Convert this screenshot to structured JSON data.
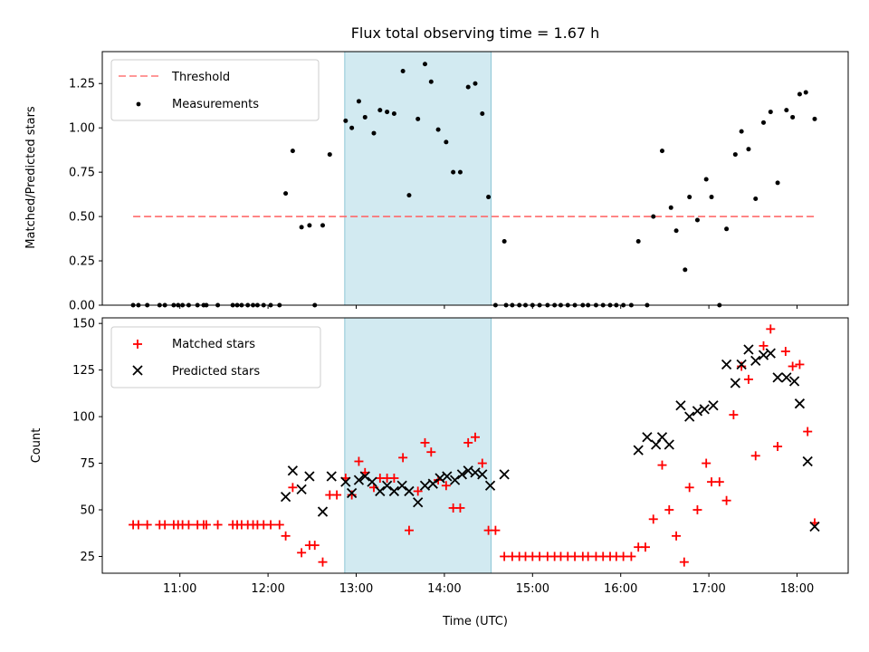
{
  "title": "Flux total observing time = 1.67 h",
  "colors": {
    "threshold": "#ff6666",
    "measurement": "#000000",
    "matched": "#ff0000",
    "predicted": "#000000",
    "observing_span": "#add8e6"
  },
  "chart_data": [
    {
      "type": "scatter",
      "ylabel": "Matched/Predicted stars",
      "ylim": [
        0,
        1.43
      ],
      "xlim": [
        10.12,
        18.58
      ],
      "x_unit": "hours UTC",
      "yticks": [
        0,
        0.25,
        0.5,
        0.75,
        1.0,
        1.25
      ],
      "ytick_labels": [
        "0.00",
        "0.25",
        "0.50",
        "0.75",
        "1.00",
        "1.25"
      ],
      "legend": {
        "position": "top-left",
        "entries": [
          "Threshold",
          "Measurements"
        ]
      },
      "observing_span": [
        12.87,
        14.53
      ],
      "threshold": {
        "name": "Threshold",
        "y": 0.5,
        "x_start": 10.47,
        "x_end": 18.2
      },
      "series": [
        {
          "name": "Measurements",
          "points": [
            [
              10.47,
              0
            ],
            [
              10.53,
              0
            ],
            [
              10.63,
              0
            ],
            [
              10.77,
              0
            ],
            [
              10.83,
              0
            ],
            [
              10.93,
              0
            ],
            [
              10.98,
              0
            ],
            [
              11.03,
              0
            ],
            [
              11.1,
              0
            ],
            [
              11.2,
              0
            ],
            [
              11.27,
              0
            ],
            [
              11.3,
              0
            ],
            [
              11.43,
              0
            ],
            [
              11.6,
              0
            ],
            [
              11.65,
              0
            ],
            [
              11.7,
              0
            ],
            [
              11.77,
              0
            ],
            [
              11.83,
              0
            ],
            [
              11.88,
              0
            ],
            [
              11.95,
              0
            ],
            [
              12.03,
              0
            ],
            [
              12.13,
              0
            ],
            [
              12.2,
              0.63
            ],
            [
              12.28,
              0.87
            ],
            [
              12.38,
              0.44
            ],
            [
              12.47,
              0.45
            ],
            [
              12.53,
              0
            ],
            [
              12.62,
              0.45
            ],
            [
              12.7,
              0.85
            ],
            [
              12.88,
              1.04
            ],
            [
              12.95,
              1.0
            ],
            [
              13.03,
              1.15
            ],
            [
              13.1,
              1.06
            ],
            [
              13.2,
              0.97
            ],
            [
              13.27,
              1.1
            ],
            [
              13.35,
              1.09
            ],
            [
              13.43,
              1.08
            ],
            [
              13.53,
              1.32
            ],
            [
              13.6,
              0.62
            ],
            [
              13.7,
              1.05
            ],
            [
              13.78,
              1.36
            ],
            [
              13.85,
              1.26
            ],
            [
              13.93,
              0.99
            ],
            [
              14.02,
              0.92
            ],
            [
              14.1,
              0.75
            ],
            [
              14.18,
              0.75
            ],
            [
              14.27,
              1.23
            ],
            [
              14.35,
              1.25
            ],
            [
              14.43,
              1.08
            ],
            [
              14.5,
              0.61
            ],
            [
              14.68,
              0.36
            ],
            [
              14.58,
              0
            ],
            [
              14.7,
              0
            ],
            [
              14.77,
              0
            ],
            [
              14.85,
              0
            ],
            [
              14.92,
              0
            ],
            [
              15.0,
              0
            ],
            [
              15.08,
              0
            ],
            [
              15.17,
              0
            ],
            [
              15.25,
              0
            ],
            [
              15.32,
              0
            ],
            [
              15.4,
              0
            ],
            [
              15.48,
              0
            ],
            [
              15.57,
              0
            ],
            [
              15.63,
              0
            ],
            [
              15.72,
              0
            ],
            [
              15.8,
              0
            ],
            [
              15.88,
              0
            ],
            [
              15.95,
              0
            ],
            [
              16.03,
              0
            ],
            [
              16.12,
              0
            ],
            [
              16.3,
              0
            ],
            [
              16.2,
              0.36
            ],
            [
              16.37,
              0.5
            ],
            [
              16.47,
              0.87
            ],
            [
              16.57,
              0.55
            ],
            [
              16.63,
              0.42
            ],
            [
              16.73,
              0.2
            ],
            [
              16.78,
              0.61
            ],
            [
              16.87,
              0.48
            ],
            [
              16.97,
              0.71
            ],
            [
              17.03,
              0.61
            ],
            [
              17.12,
              0
            ],
            [
              17.2,
              0.43
            ],
            [
              17.3,
              0.85
            ],
            [
              17.37,
              0.98
            ],
            [
              17.45,
              0.88
            ],
            [
              17.53,
              0.6
            ],
            [
              17.62,
              1.03
            ],
            [
              17.7,
              1.09
            ],
            [
              17.78,
              0.69
            ],
            [
              17.88,
              1.1
            ],
            [
              17.95,
              1.06
            ],
            [
              18.03,
              1.19
            ],
            [
              18.1,
              1.2
            ],
            [
              18.2,
              1.05
            ]
          ]
        }
      ]
    },
    {
      "type": "scatter",
      "xlabel": "Time (UTC)",
      "ylabel": "Count",
      "ylim": [
        16,
        153
      ],
      "xlim": [
        10.12,
        18.58
      ],
      "xticks": [
        11,
        12,
        13,
        14,
        15,
        16,
        17,
        18
      ],
      "xtick_labels": [
        "11:00",
        "12:00",
        "13:00",
        "14:00",
        "15:00",
        "16:00",
        "17:00",
        "18:00"
      ],
      "yticks": [
        25,
        50,
        75,
        100,
        125,
        150
      ],
      "ytick_labels": [
        "25",
        "50",
        "75",
        "100",
        "125",
        "150"
      ],
      "legend": {
        "position": "top-left",
        "entries": [
          "Matched stars",
          "Predicted stars"
        ]
      },
      "observing_span": [
        12.87,
        14.53
      ],
      "series": [
        {
          "name": "Matched stars",
          "marker": "plus",
          "points": [
            [
              10.47,
              42
            ],
            [
              10.53,
              42
            ],
            [
              10.63,
              42
            ],
            [
              10.77,
              42
            ],
            [
              10.83,
              42
            ],
            [
              10.93,
              42
            ],
            [
              10.98,
              42
            ],
            [
              11.03,
              42
            ],
            [
              11.1,
              42
            ],
            [
              11.2,
              42
            ],
            [
              11.27,
              42
            ],
            [
              11.3,
              42
            ],
            [
              11.43,
              42
            ],
            [
              11.6,
              42
            ],
            [
              11.65,
              42
            ],
            [
              11.7,
              42
            ],
            [
              11.77,
              42
            ],
            [
              11.83,
              42
            ],
            [
              11.88,
              42
            ],
            [
              11.95,
              42
            ],
            [
              12.03,
              42
            ],
            [
              12.13,
              42
            ],
            [
              12.2,
              36
            ],
            [
              12.28,
              62
            ],
            [
              12.38,
              27
            ],
            [
              12.47,
              31
            ],
            [
              12.53,
              31
            ],
            [
              12.62,
              22
            ],
            [
              12.7,
              58
            ],
            [
              12.78,
              58
            ],
            [
              12.88,
              67
            ],
            [
              12.95,
              58
            ],
            [
              13.03,
              76
            ],
            [
              13.1,
              70
            ],
            [
              13.2,
              62
            ],
            [
              13.27,
              67
            ],
            [
              13.35,
              67
            ],
            [
              13.43,
              67
            ],
            [
              13.53,
              78
            ],
            [
              13.6,
              39
            ],
            [
              13.7,
              60
            ],
            [
              13.78,
              86
            ],
            [
              13.85,
              81
            ],
            [
              13.93,
              66
            ],
            [
              14.02,
              63
            ],
            [
              14.1,
              51
            ],
            [
              14.18,
              51
            ],
            [
              14.27,
              86
            ],
            [
              14.35,
              89
            ],
            [
              14.43,
              75
            ],
            [
              14.5,
              39
            ],
            [
              14.58,
              39
            ],
            [
              14.68,
              25
            ],
            [
              14.77,
              25
            ],
            [
              14.85,
              25
            ],
            [
              14.92,
              25
            ],
            [
              15.0,
              25
            ],
            [
              15.08,
              25
            ],
            [
              15.17,
              25
            ],
            [
              15.25,
              25
            ],
            [
              15.32,
              25
            ],
            [
              15.4,
              25
            ],
            [
              15.48,
              25
            ],
            [
              15.57,
              25
            ],
            [
              15.63,
              25
            ],
            [
              15.72,
              25
            ],
            [
              15.8,
              25
            ],
            [
              15.88,
              25
            ],
            [
              15.95,
              25
            ],
            [
              16.03,
              25
            ],
            [
              16.12,
              25
            ],
            [
              16.2,
              30
            ],
            [
              16.28,
              30
            ],
            [
              16.37,
              45
            ],
            [
              16.47,
              74
            ],
            [
              16.55,
              50
            ],
            [
              16.63,
              36
            ],
            [
              16.72,
              22
            ],
            [
              16.78,
              62
            ],
            [
              16.87,
              50
            ],
            [
              16.97,
              75
            ],
            [
              17.03,
              65
            ],
            [
              17.12,
              65
            ],
            [
              17.2,
              55
            ],
            [
              17.28,
              101
            ],
            [
              17.37,
              127
            ],
            [
              17.45,
              120
            ],
            [
              17.53,
              79
            ],
            [
              17.62,
              138
            ],
            [
              17.7,
              147
            ],
            [
              17.78,
              84
            ],
            [
              17.87,
              135
            ],
            [
              17.95,
              127
            ],
            [
              18.03,
              128
            ],
            [
              18.12,
              92
            ],
            [
              18.2,
              43
            ]
          ]
        },
        {
          "name": "Predicted stars",
          "marker": "cross",
          "points": [
            [
              12.2,
              57
            ],
            [
              12.28,
              71
            ],
            [
              12.38,
              61
            ],
            [
              12.47,
              68
            ],
            [
              12.62,
              49
            ],
            [
              12.72,
              68
            ],
            [
              12.88,
              65
            ],
            [
              12.95,
              59
            ],
            [
              13.03,
              66
            ],
            [
              13.1,
              68
            ],
            [
              13.18,
              65
            ],
            [
              13.27,
              60
            ],
            [
              13.35,
              63
            ],
            [
              13.43,
              60
            ],
            [
              13.52,
              63
            ],
            [
              13.6,
              60
            ],
            [
              13.7,
              54
            ],
            [
              13.78,
              63
            ],
            [
              13.87,
              64
            ],
            [
              13.95,
              67
            ],
            [
              14.03,
              68
            ],
            [
              14.12,
              66
            ],
            [
              14.2,
              69
            ],
            [
              14.27,
              71
            ],
            [
              14.35,
              70
            ],
            [
              14.43,
              69
            ],
            [
              14.52,
              63
            ],
            [
              14.68,
              69
            ],
            [
              16.2,
              82
            ],
            [
              16.3,
              89
            ],
            [
              16.4,
              85
            ],
            [
              16.47,
              89
            ],
            [
              16.55,
              85
            ],
            [
              16.68,
              106
            ],
            [
              16.78,
              100
            ],
            [
              16.87,
              103
            ],
            [
              16.95,
              104
            ],
            [
              17.05,
              106
            ],
            [
              17.2,
              128
            ],
            [
              17.3,
              118
            ],
            [
              17.37,
              128
            ],
            [
              17.45,
              136
            ],
            [
              17.53,
              130
            ],
            [
              17.62,
              133
            ],
            [
              17.7,
              134
            ],
            [
              17.78,
              121
            ],
            [
              17.88,
              121
            ],
            [
              17.97,
              119
            ],
            [
              18.03,
              107
            ],
            [
              18.12,
              76
            ],
            [
              18.2,
              41
            ]
          ]
        }
      ]
    }
  ]
}
